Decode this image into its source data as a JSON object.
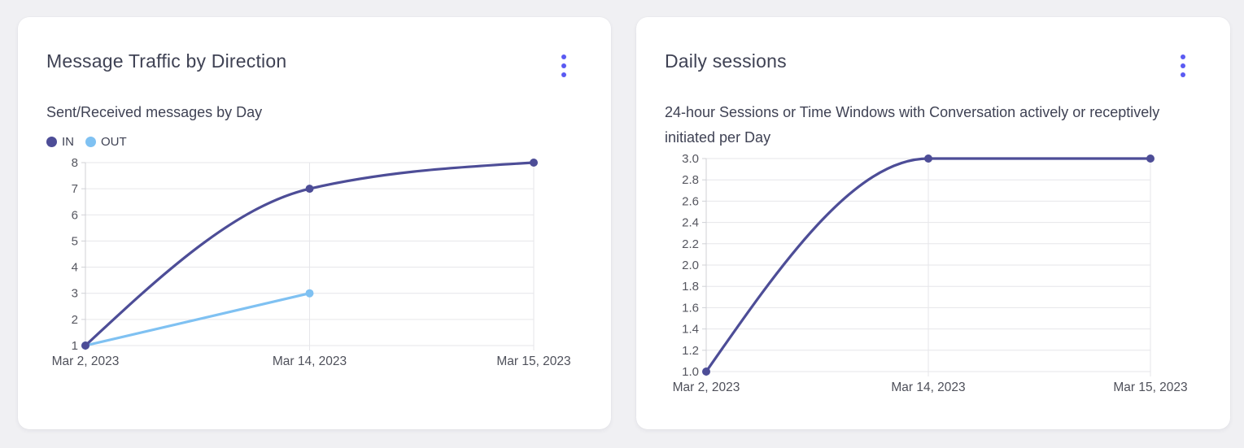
{
  "page": {
    "background": "#f0f0f3"
  },
  "colors": {
    "menu_accent": "#5a5af2",
    "grid": "#e6e6ea",
    "axis": "#d0d1d6",
    "tick_text": "#55565f",
    "title_text": "#3f4254",
    "series_in": "#4d4d97",
    "series_out": "#7fc1f2"
  },
  "cards": [
    {
      "title": "Message Traffic by Direction",
      "subtitle": "Sent/Received messages by Day",
      "menu_icon": "kebab-vertical-icon",
      "legend": [
        {
          "label": "IN",
          "color": "#4d4d97"
        },
        {
          "label": "OUT",
          "color": "#7fc1f2"
        }
      ]
    },
    {
      "title": "Daily sessions",
      "subtitle": "24-hour Sessions or Time Windows with Conversation actively or receptively initiated per Day",
      "menu_icon": "kebab-vertical-icon"
    }
  ],
  "chart_data": [
    {
      "type": "line",
      "title": "Message Traffic by Direction",
      "categories": [
        "Mar 2, 2023",
        "Mar 14, 2023",
        "Mar 15, 2023"
      ],
      "series": [
        {
          "name": "IN",
          "color": "#4d4d97",
          "values": [
            1,
            7,
            8
          ]
        },
        {
          "name": "OUT",
          "color": "#7fc1f2",
          "values": [
            1,
            3,
            null
          ]
        }
      ],
      "ylim": [
        1,
        8
      ],
      "ytick_values": [
        1,
        2,
        3,
        4,
        5,
        6,
        7,
        8
      ],
      "ytick_labels": [
        "1",
        "2",
        "3",
        "4",
        "5",
        "6",
        "7",
        "8"
      ],
      "grid": true,
      "legend_position": "top-left",
      "curve": "monotone"
    },
    {
      "type": "line",
      "title": "Daily sessions",
      "categories": [
        "Mar 2, 2023",
        "Mar 14, 2023",
        "Mar 15, 2023"
      ],
      "series": [
        {
          "name": "Daily sessions",
          "color": "#4d4d97",
          "values": [
            1,
            3,
            3
          ]
        }
      ],
      "ylim": [
        1,
        3
      ],
      "ytick_values": [
        1,
        1.2,
        1.4,
        1.6,
        1.8,
        2,
        2.2,
        2.4,
        2.6,
        2.8,
        3
      ],
      "ytick_labels": [
        "1.0",
        "1.2",
        "1.4",
        "1.6",
        "1.8",
        "2.0",
        "2.2",
        "2.4",
        "2.6",
        "2.8",
        "3.0"
      ],
      "grid": true,
      "legend_position": "none",
      "curve": "monotone"
    }
  ]
}
